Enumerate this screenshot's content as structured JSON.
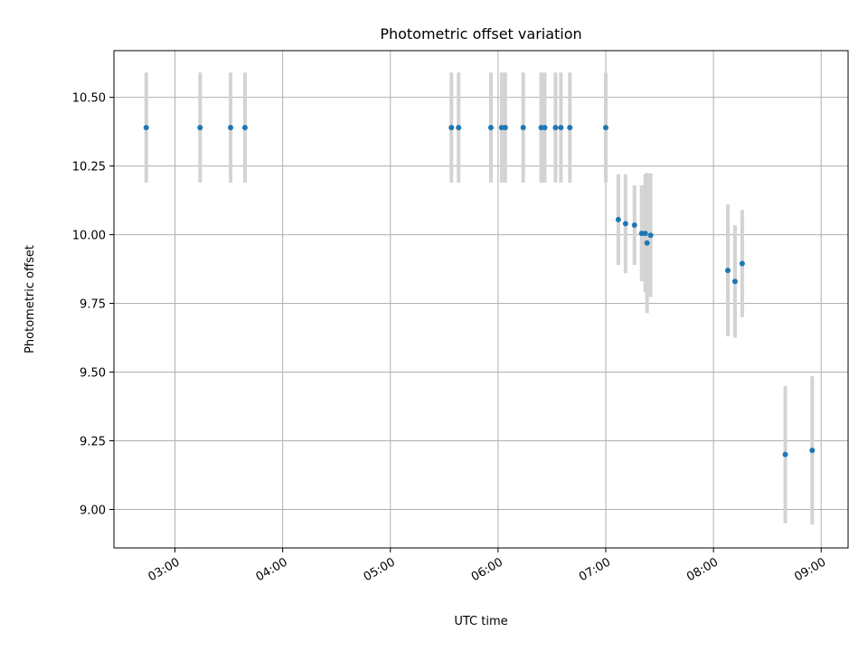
{
  "chart_data": {
    "type": "scatter",
    "title": "Photometric offset variation",
    "xlabel": "UTC time",
    "ylabel": "Photometric offset",
    "x_tick_labels": [
      "03:00",
      "04:00",
      "05:00",
      "06:00",
      "07:00",
      "08:00",
      "09:00"
    ],
    "x_ticks": [
      "03:00",
      "04:00",
      "05:00",
      "06:00",
      "07:00",
      "08:00",
      "09:00"
    ],
    "y_ticks": [
      9.0,
      9.25,
      9.5,
      9.75,
      10.0,
      10.25,
      10.5
    ],
    "y_tick_labels": [
      "9.00",
      "9.25",
      "9.50",
      "9.75",
      "10.00",
      "10.25",
      "10.50"
    ],
    "xlim": [
      "02:26",
      "09:15"
    ],
    "ylim": [
      8.86,
      10.67
    ],
    "grid": true,
    "colors": {
      "point": "#1f77b4",
      "errorbar": "#d3d3d3",
      "grid": "#b0b0b0"
    },
    "series": [
      {
        "points": [
          {
            "x": "02:44",
            "y": 10.39,
            "err": 0.2
          },
          {
            "x": "03:14",
            "y": 10.39,
            "err": 0.2
          },
          {
            "x": "03:31",
            "y": 10.39,
            "err": 0.2
          },
          {
            "x": "03:39",
            "y": 10.39,
            "err": 0.2
          },
          {
            "x": "05:34",
            "y": 10.39,
            "err": 0.2
          },
          {
            "x": "05:38",
            "y": 10.39,
            "err": 0.2
          },
          {
            "x": "05:56",
            "y": 10.39,
            "err": 0.2
          },
          {
            "x": "06:02",
            "y": 10.39,
            "err": 0.2
          },
          {
            "x": "06:04",
            "y": 10.39,
            "err": 0.2
          },
          {
            "x": "06:14",
            "y": 10.39,
            "err": 0.2
          },
          {
            "x": "06:24",
            "y": 10.39,
            "err": 0.2
          },
          {
            "x": "06:26",
            "y": 10.39,
            "err": 0.2
          },
          {
            "x": "06:32",
            "y": 10.39,
            "err": 0.2
          },
          {
            "x": "06:35",
            "y": 10.39,
            "err": 0.2
          },
          {
            "x": "06:40",
            "y": 10.39,
            "err": 0.2
          },
          {
            "x": "07:00",
            "y": 10.39,
            "err": 0.2
          },
          {
            "x": "07:07",
            "y": 10.055,
            "err": 0.165
          },
          {
            "x": "07:11",
            "y": 10.04,
            "err": 0.18
          },
          {
            "x": "07:16",
            "y": 10.035,
            "err": 0.145
          },
          {
            "x": "07:20",
            "y": 10.005,
            "err": 0.175
          },
          {
            "x": "07:22",
            "y": 10.005,
            "err": 0.215
          },
          {
            "x": "07:23",
            "y": 9.97,
            "err": 0.255
          },
          {
            "x": "07:25",
            "y": 9.998,
            "err": 0.225
          },
          {
            "x": "08:08",
            "y": 9.87,
            "err": 0.24
          },
          {
            "x": "08:12",
            "y": 9.83,
            "err": 0.205
          },
          {
            "x": "08:16",
            "y": 9.895,
            "err": 0.195
          },
          {
            "x": "08:40",
            "y": 9.2,
            "err": 0.25
          },
          {
            "x": "08:55",
            "y": 9.215,
            "err": 0.27
          }
        ]
      }
    ]
  }
}
